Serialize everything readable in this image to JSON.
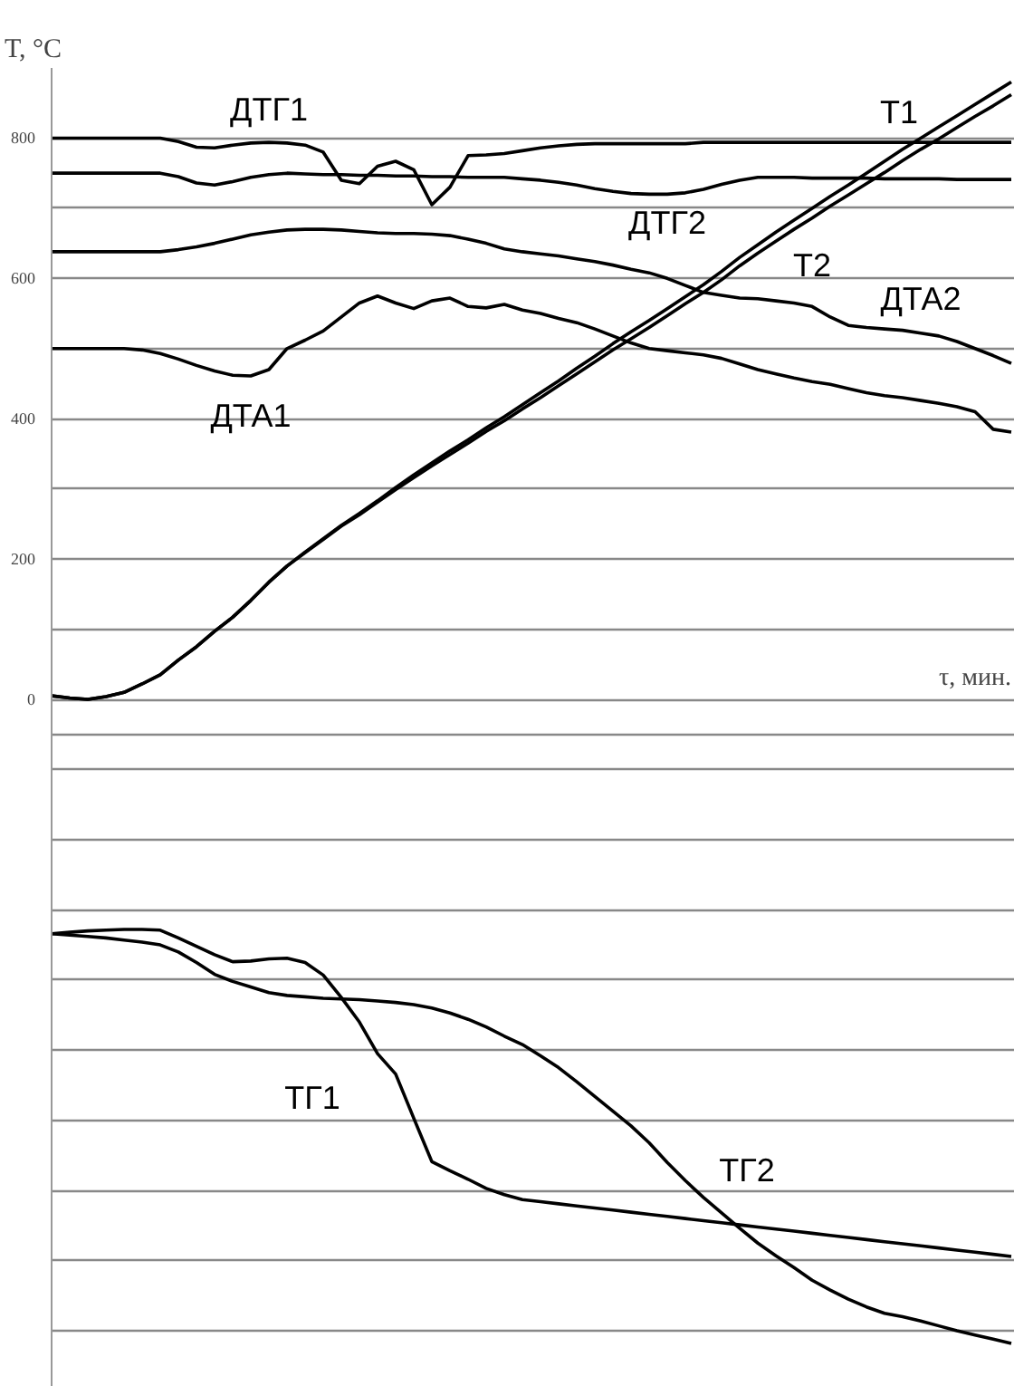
{
  "chart_data": {
    "type": "line",
    "ylabel": "T, °C",
    "xlabel": "τ, мин.",
    "categories": [
      null,
      null,
      null,
      null,
      null,
      null,
      null,
      null,
      null,
      null,
      null,
      null,
      null,
      null,
      null,
      null,
      null,
      null,
      null,
      null,
      null,
      null,
      null,
      null,
      null,
      null,
      null,
      null,
      null,
      null,
      null,
      null,
      null,
      null,
      null,
      null,
      null,
      null,
      null,
      null,
      null,
      null,
      null,
      null,
      null,
      null,
      null,
      null,
      null,
      null,
      null,
      null,
      null,
      null
    ],
    "ylim": [
      -980,
      900
    ],
    "yticks": [
      {
        "value": -900,
        "label": null
      },
      {
        "value": -800,
        "label": null
      },
      {
        "value": -700,
        "label": null
      },
      {
        "value": -600,
        "label": null
      },
      {
        "value": -500,
        "label": null
      },
      {
        "value": -400,
        "label": null
      },
      {
        "value": -300,
        "label": null
      },
      {
        "value": -200,
        "label": null
      },
      {
        "value": -100,
        "label": null
      },
      {
        "value": -50,
        "label": null
      },
      0,
      {
        "value": 100,
        "label": null
      },
      200,
      {
        "value": 300,
        "label": null
      },
      400,
      {
        "value": 500,
        "label": null
      },
      600,
      {
        "value": 700,
        "label": null
      },
      800
    ],
    "grid": "y",
    "line_style": "solid",
    "tick_labels": "y",
    "series": [
      {
        "name": "ДТГ1",
        "color": "#000000",
        "values": [
          800,
          800,
          800,
          800,
          800,
          800,
          800,
          795,
          787,
          786,
          790,
          793,
          794,
          793,
          790,
          780,
          740,
          735,
          760,
          767,
          755,
          705,
          730,
          775,
          776,
          778,
          782,
          786,
          789,
          791,
          792,
          792,
          792,
          792,
          792,
          792,
          794,
          794,
          794,
          794,
          794,
          794,
          794,
          794,
          794,
          794,
          794,
          794,
          794,
          794,
          794,
          794,
          794,
          794
        ]
      },
      {
        "name": "ДТГ2",
        "color": "#000000",
        "values": [
          750,
          750,
          750,
          750,
          750,
          750,
          750,
          745,
          736,
          733,
          738,
          744,
          748,
          750,
          749,
          748,
          748,
          747,
          747,
          746,
          746,
          745,
          745,
          744,
          744,
          744,
          742,
          740,
          737,
          733,
          728,
          724,
          721,
          720,
          720,
          722,
          727,
          734,
          740,
          744,
          744,
          744,
          743,
          743,
          743,
          743,
          742,
          742,
          742,
          742,
          741,
          741,
          741,
          741
        ]
      },
      {
        "name": "ДТА2",
        "color": "#000000",
        "values": [
          638,
          638,
          638,
          638,
          638,
          638,
          638,
          641,
          645,
          650,
          656,
          662,
          666,
          669,
          670,
          670,
          669,
          667,
          665,
          664,
          664,
          663,
          661,
          656,
          650,
          642,
          638,
          635,
          632,
          628,
          624,
          619,
          613,
          608,
          600,
          590,
          580,
          576,
          572,
          571,
          568,
          565,
          560,
          545,
          533,
          530,
          528,
          526,
          522,
          518,
          510,
          500,
          490,
          479
        ]
      },
      {
        "name": "ДТА1",
        "color": "#000000",
        "values": [
          500,
          500,
          500,
          500,
          500,
          498,
          493,
          485,
          476,
          468,
          462,
          461,
          470,
          500,
          512,
          525,
          545,
          565,
          575,
          565,
          557,
          568,
          572,
          560,
          558,
          563,
          555,
          550,
          543,
          537,
          528,
          518,
          508,
          500,
          497,
          494,
          491,
          486,
          478,
          470,
          464,
          458,
          453,
          449,
          443,
          437,
          433,
          430,
          426,
          422,
          417,
          410,
          385,
          381
        ]
      },
      {
        "name": "T1",
        "color": "#000000",
        "values": [
          5,
          2,
          0,
          4,
          10,
          22,
          35,
          56,
          75,
          97,
          117,
          141,
          167,
          190,
          210,
          229,
          248,
          265,
          283,
          302,
          320,
          337,
          354,
          370,
          387,
          403,
          420,
          437,
          454,
          472,
          489,
          507,
          524,
          540,
          557,
          574,
          591,
          610,
          630,
          648,
          666,
          683,
          700,
          717,
          733,
          750,
          767,
          784,
          800,
          816,
          832,
          848,
          864,
          880
        ]
      },
      {
        "name": "T2",
        "color": "#000000",
        "values": [
          5,
          2,
          0,
          4,
          10,
          22,
          35,
          56,
          75,
          97,
          117,
          141,
          167,
          190,
          209,
          228,
          247,
          263,
          281,
          299,
          316,
          333,
          349,
          365,
          382,
          397,
          414,
          430,
          447,
          464,
          481,
          498,
          514,
          530,
          547,
          564,
          580,
          598,
          618,
          636,
          653,
          670,
          686,
          703,
          719,
          735,
          751,
          768,
          784,
          799,
          815,
          831,
          846,
          862
        ]
      },
      {
        "name": "ТГ1",
        "color": "#000000",
        "values": [
          -334,
          -332,
          -330,
          -329,
          -328,
          -328,
          -329,
          -340,
          -352,
          -364,
          -374,
          -373,
          -370,
          -369,
          -375,
          -393,
          -425,
          -460,
          -505,
          -534,
          -597,
          -659,
          -672,
          -684,
          -697,
          -706,
          -713,
          -716,
          -719,
          -722,
          -725,
          -728,
          -731,
          -734,
          -737,
          -740,
          -743,
          -746,
          -749,
          -752,
          -755,
          -758,
          -761,
          -764,
          -767,
          -770,
          -773,
          -776,
          -779,
          -782,
          -785,
          -788,
          -791,
          -794
        ]
      },
      {
        "name": "ТГ2",
        "color": "#000000",
        "values": [
          -334,
          -336,
          -338,
          -340,
          -343,
          -346,
          -350,
          -360,
          -375,
          -392,
          -402,
          -410,
          -418,
          -422,
          -424,
          -426,
          -427,
          -428,
          -430,
          -432,
          -435,
          -440,
          -447,
          -456,
          -467,
          -480,
          -492,
          -508,
          -525,
          -545,
          -566,
          -587,
          -608,
          -632,
          -660,
          -686,
          -710,
          -732,
          -754,
          -775,
          -793,
          -810,
          -828,
          -842,
          -855,
          -866,
          -875,
          -880,
          -886,
          -893,
          -900,
          -906,
          -912,
          -918
        ]
      }
    ]
  }
}
